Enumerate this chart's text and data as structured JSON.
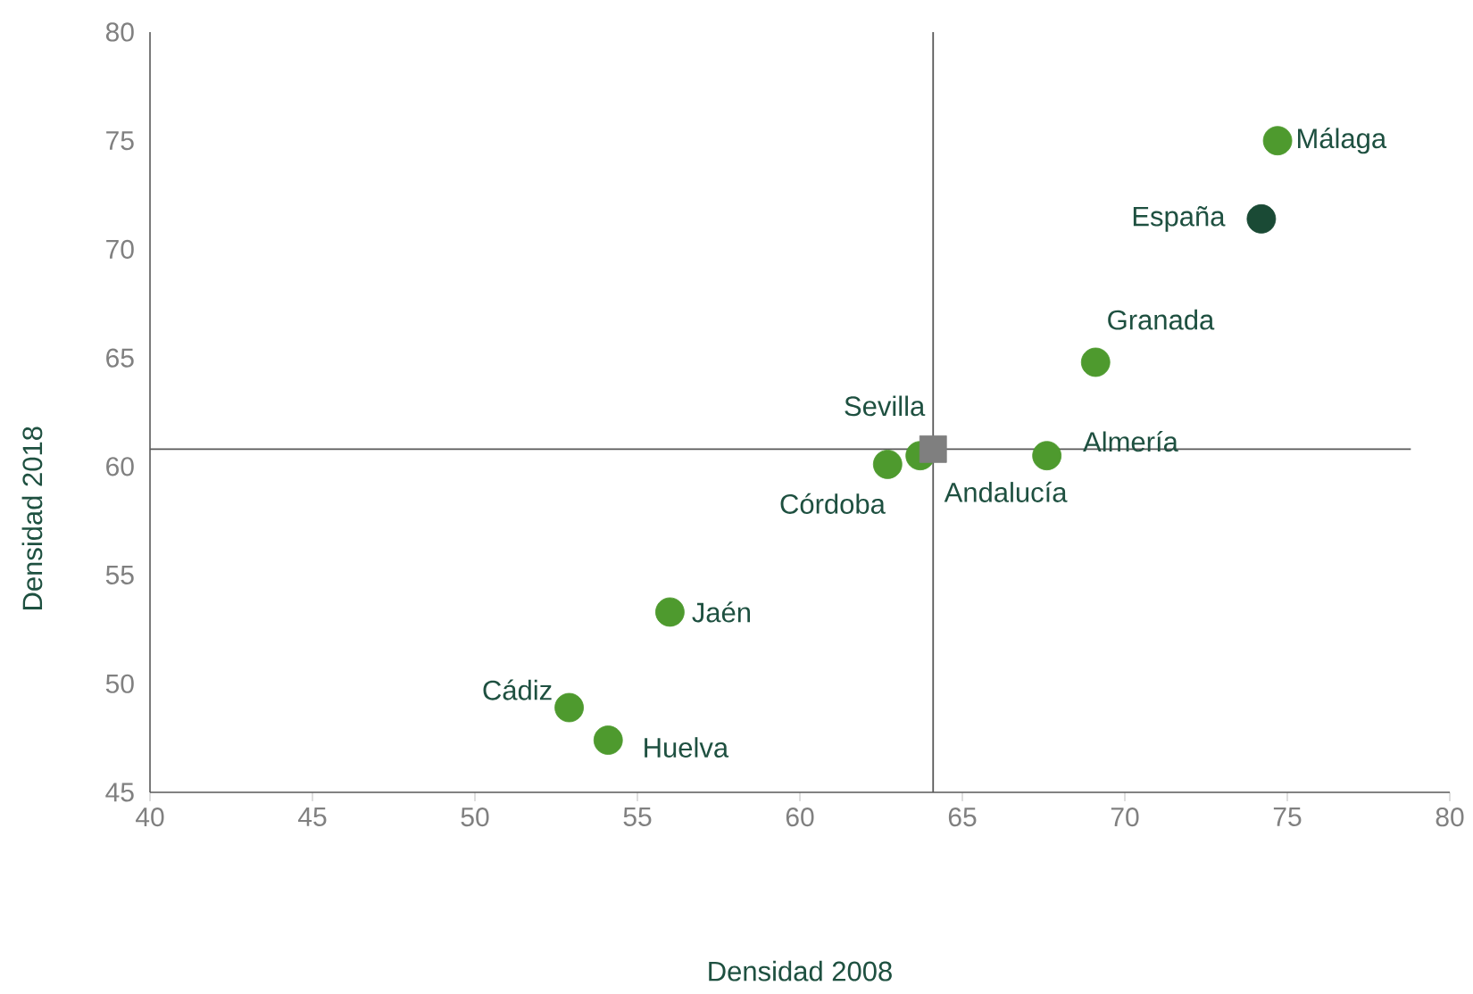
{
  "chart_data": {
    "type": "scatter",
    "xlabel": "Densidad 2008",
    "ylabel": "Densidad 2018",
    "xlim": [
      40,
      80
    ],
    "ylim": [
      45,
      80
    ],
    "xticks": [
      40,
      45,
      50,
      55,
      60,
      65,
      70,
      75,
      80
    ],
    "yticks": [
      45,
      50,
      55,
      60,
      65,
      70,
      75,
      80
    ],
    "ref_lines": [
      {
        "axis": "x",
        "value": 64.1,
        "color": "#595959"
      },
      {
        "axis": "y",
        "value": 60.8,
        "color": "#595959"
      }
    ],
    "series": [
      {
        "name": "Málaga",
        "x": [
          74.7
        ],
        "values": [
          75.0
        ],
        "color": "#4e9a2e",
        "marker": "circle"
      },
      {
        "name": "España",
        "x": [
          74.2
        ],
        "values": [
          71.4
        ],
        "color": "#1a4a35",
        "marker": "circle"
      },
      {
        "name": "Granada",
        "x": [
          69.1
        ],
        "values": [
          64.8
        ],
        "color": "#4e9a2e",
        "marker": "circle"
      },
      {
        "name": "Almería",
        "x": [
          67.6
        ],
        "values": [
          60.5
        ],
        "color": "#4e9a2e",
        "marker": "circle"
      },
      {
        "name": "Sevilla",
        "x": [
          63.7
        ],
        "values": [
          60.5
        ],
        "color": "#4e9a2e",
        "marker": "circle"
      },
      {
        "name": "Córdoba",
        "x": [
          62.7
        ],
        "values": [
          60.1
        ],
        "color": "#4e9a2e",
        "marker": "circle"
      },
      {
        "name": "Andalucía",
        "x": [
          64.1
        ],
        "values": [
          60.8
        ],
        "color": "#7f7f7f",
        "marker": "square"
      },
      {
        "name": "Jaén",
        "x": [
          56.0
        ],
        "values": [
          53.3
        ],
        "color": "#4e9a2e",
        "marker": "circle"
      },
      {
        "name": "Cádiz",
        "x": [
          52.9
        ],
        "values": [
          48.9
        ],
        "color": "#4e9a2e",
        "marker": "circle"
      },
      {
        "name": "Huelva",
        "x": [
          54.1
        ],
        "values": [
          47.4
        ],
        "color": "#4e9a2e",
        "marker": "circle"
      }
    ]
  }
}
